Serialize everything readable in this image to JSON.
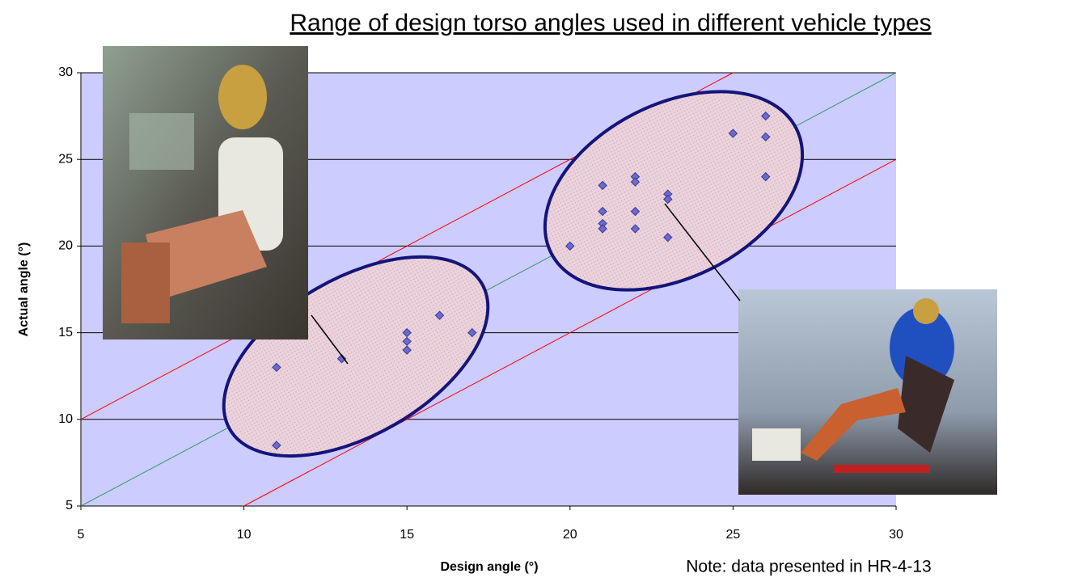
{
  "chart_data": {
    "type": "scatter",
    "title": "Range of design torso angles used in different vehicle types",
    "x_label": "Design angle (°)",
    "y_label": "Actual angle (°)",
    "note": "Note: data presented in HR-4-13",
    "xlim": [
      5,
      30
    ],
    "ylim": [
      5,
      30
    ],
    "xticks": [
      5,
      10,
      15,
      20,
      25,
      30
    ],
    "yticks": [
      5,
      10,
      15,
      20,
      25,
      30
    ],
    "grid": true,
    "background": "#ccccff",
    "series": [
      {
        "type": "scatter",
        "color": "#6a6ad0",
        "x": [
          11,
          11,
          13,
          15,
          15,
          15,
          16,
          17,
          20,
          21,
          21,
          21,
          21,
          22,
          22,
          22,
          22,
          23,
          23,
          23,
          25,
          26,
          26,
          26
        ],
        "values": [
          13,
          8.5,
          13.5,
          15,
          14.5,
          14,
          16,
          15,
          20,
          23.5,
          22,
          21.3,
          21,
          24,
          23.7,
          22,
          21,
          23,
          22.7,
          20.5,
          26.5,
          27.5,
          26.3,
          24
        ]
      },
      {
        "type": "line",
        "color": "#339966",
        "x": [
          5,
          30
        ],
        "values": [
          5,
          30
        ]
      },
      {
        "type": "line",
        "color": "#ff0000",
        "x": [
          5,
          25
        ],
        "values": [
          10,
          30
        ]
      },
      {
        "type": "line",
        "color": "#ff0000",
        "x": [
          10,
          30
        ],
        "values": [
          5,
          25
        ]
      }
    ]
  }
}
